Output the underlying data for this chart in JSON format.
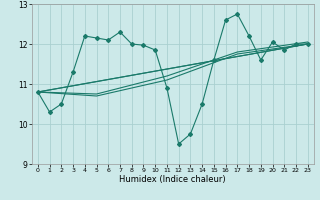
{
  "title": "",
  "xlabel": "Humidex (Indice chaleur)",
  "ylabel": "",
  "background_color": "#cce9e9",
  "grid_color": "#aad0d0",
  "line_color": "#1a7a6a",
  "xlim": [
    -0.5,
    23.5
  ],
  "ylim": [
    9,
    13
  ],
  "xticks": [
    0,
    1,
    2,
    3,
    4,
    5,
    6,
    7,
    8,
    9,
    10,
    11,
    12,
    13,
    14,
    15,
    16,
    17,
    18,
    19,
    20,
    21,
    22,
    23
  ],
  "yticks": [
    9,
    10,
    11,
    12,
    13
  ],
  "series": [
    {
      "x": [
        0,
        1,
        2,
        3,
        4,
        5,
        6,
        7,
        8,
        9,
        10,
        11,
        12,
        13,
        14,
        15,
        16,
        17,
        18,
        19,
        20,
        21,
        22,
        23
      ],
      "y": [
        10.8,
        10.3,
        10.5,
        11.3,
        12.2,
        12.15,
        12.1,
        12.3,
        12.0,
        11.97,
        11.85,
        10.9,
        9.5,
        9.75,
        10.5,
        11.6,
        12.6,
        12.75,
        12.2,
        11.6,
        12.05,
        11.85,
        12.0,
        12.0
      ],
      "marker": true
    },
    {
      "x": [
        0,
        23
      ],
      "y": [
        10.8,
        12.0
      ],
      "marker": false
    },
    {
      "x": [
        0,
        23
      ],
      "y": [
        10.8,
        12.0
      ],
      "marker": false
    },
    {
      "x": [
        0,
        5,
        11,
        17,
        23
      ],
      "y": [
        10.8,
        10.7,
        11.1,
        11.75,
        12.0
      ],
      "marker": false
    },
    {
      "x": [
        0,
        5,
        11,
        17,
        23
      ],
      "y": [
        10.8,
        10.75,
        11.2,
        11.8,
        12.05
      ],
      "marker": false
    }
  ]
}
